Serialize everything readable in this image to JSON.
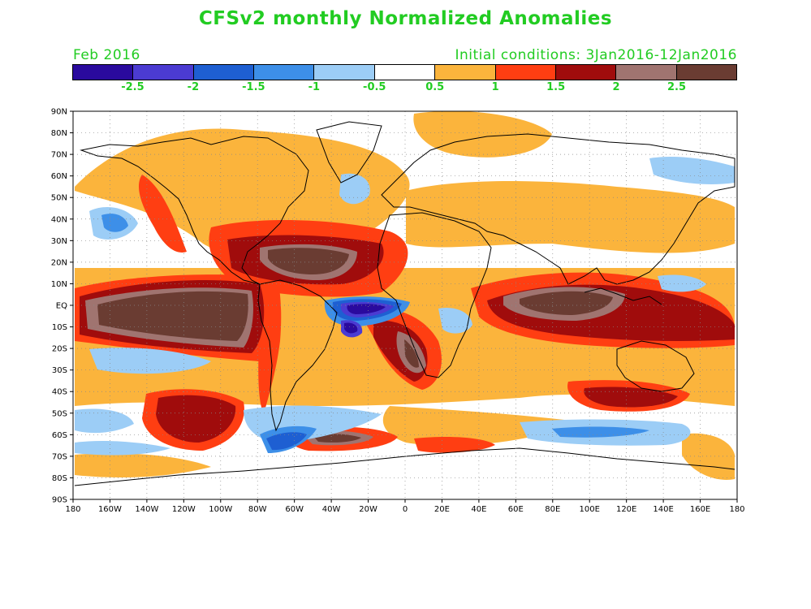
{
  "header": {
    "title": "CFSv2 monthly Normalized Anomalies",
    "forecast_month": "Feb 2016",
    "initial_conditions": "Initial conditions: 3Jan2016-12Jan2016",
    "text_color": "#22cc22"
  },
  "colorbar": {
    "colors": [
      "#2a0a9e",
      "#4b3bd2",
      "#1e5fd2",
      "#3d8fe8",
      "#9ccdf6",
      "#ffffff",
      "#fbb43c",
      "#ff3e12",
      "#a00c0c",
      "#a07470",
      "#6a3c32"
    ],
    "labels": [
      "-2.5",
      "-2",
      "-1.5",
      "-1",
      "-0.5",
      "0.5",
      "1",
      "1.5",
      "2",
      "2.5"
    ]
  },
  "axes": {
    "x_ticks": [
      "180",
      "160W",
      "140W",
      "120W",
      "100W",
      "80W",
      "60W",
      "40W",
      "20W",
      "0",
      "20E",
      "40E",
      "60E",
      "80E",
      "100E",
      "120E",
      "140E",
      "160E",
      "180"
    ],
    "y_ticks": [
      "90N",
      "80N",
      "70N",
      "60N",
      "50N",
      "40N",
      "30N",
      "20N",
      "10N",
      "EQ",
      "10S",
      "20S",
      "30S",
      "40S",
      "50S",
      "60S",
      "70S",
      "80S",
      "90S"
    ]
  }
}
